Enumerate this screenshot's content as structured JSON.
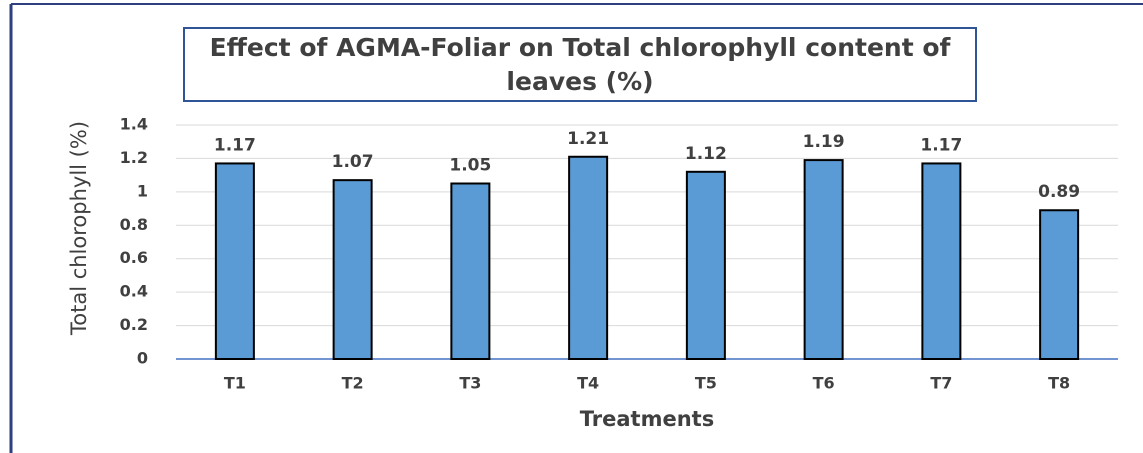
{
  "chart_data": {
    "type": "bar",
    "title": "Effect of AGMA-Foliar on Total chlorophyll content of leaves (%)",
    "x_label": "Treatments",
    "y_label": "Total chlorophyll (%)",
    "categories": [
      "T1",
      "T2",
      "T3",
      "T4",
      "T5",
      "T6",
      "T7",
      "T8"
    ],
    "values": [
      1.17,
      1.07,
      1.05,
      1.21,
      1.12,
      1.19,
      1.17,
      0.89
    ],
    "color": "#5b9bd5",
    "ylim": [
      0,
      1.4
    ],
    "yticks": [
      0,
      0.2,
      0.4,
      0.6,
      0.8,
      1,
      1.2,
      1.4
    ],
    "grid": true
  }
}
